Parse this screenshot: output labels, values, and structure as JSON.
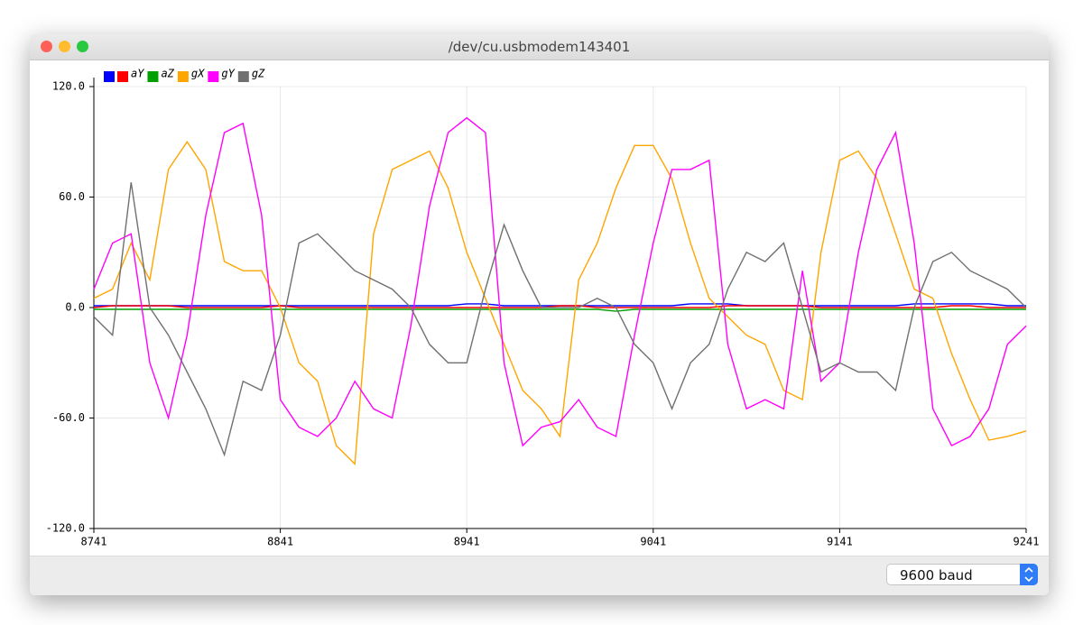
{
  "window_title": "/dev/cu.usbmodem143401",
  "baud_selector": "9600 baud",
  "chart_data": {
    "type": "line",
    "x": [
      8741,
      8751,
      8761,
      8771,
      8781,
      8791,
      8801,
      8811,
      8821,
      8831,
      8841,
      8851,
      8861,
      8871,
      8881,
      8891,
      8901,
      8911,
      8921,
      8931,
      8941,
      8951,
      8961,
      8971,
      8981,
      8991,
      9001,
      9011,
      9021,
      9031,
      9041,
      9051,
      9061,
      9071,
      9081,
      9091,
      9101,
      9111,
      9121,
      9131,
      9141,
      9151,
      9161,
      9171,
      9181,
      9191,
      9201,
      9211,
      9221,
      9231,
      9241
    ],
    "xlim": [
      8741,
      9241
    ],
    "xticks": [
      8741,
      8841,
      8941,
      9041,
      9141,
      9241
    ],
    "ylim": [
      -120,
      120
    ],
    "yticks": [
      {
        "value": -120,
        "label": "-120.0"
      },
      {
        "value": -60,
        "label": "-60.0"
      },
      {
        "value": 0,
        "label": "0.0"
      },
      {
        "value": 60,
        "label": "60.0"
      },
      {
        "value": 120,
        "label": "120.0"
      }
    ],
    "grid": true,
    "series": [
      {
        "name": null,
        "color": "#0000ff",
        "values": [
          1,
          1,
          1,
          1,
          1,
          1,
          1,
          1,
          1,
          1,
          1,
          1,
          1,
          1,
          1,
          1,
          1,
          1,
          1,
          1,
          2,
          2,
          1,
          1,
          1,
          1,
          1,
          1,
          1,
          1,
          1,
          1,
          2,
          2,
          2,
          1,
          1,
          1,
          1,
          1,
          1,
          1,
          1,
          1,
          2,
          2,
          2,
          2,
          2,
          1,
          1
        ]
      },
      {
        "name": "aY",
        "color": "#ff0000",
        "values": [
          0,
          1,
          1,
          1,
          1,
          0,
          0,
          0,
          0,
          0,
          1,
          0,
          0,
          0,
          0,
          0,
          0,
          0,
          0,
          0,
          0,
          0,
          0,
          0,
          0,
          1,
          1,
          0,
          0,
          0,
          0,
          0,
          0,
          0,
          1,
          1,
          1,
          1,
          1,
          0,
          0,
          0,
          0,
          0,
          0,
          0,
          1,
          1,
          0,
          0,
          0
        ]
      },
      {
        "name": "aZ",
        "color": "#00a000",
        "values": [
          -1,
          -1,
          -1,
          -1,
          -1,
          -1,
          -1,
          -1,
          -1,
          -1,
          -1,
          -1,
          -1,
          -1,
          -1,
          -1,
          -1,
          -1,
          -1,
          -1,
          -1,
          -1,
          -1,
          -1,
          -1,
          -1,
          -1,
          -1,
          -2,
          -1,
          -1,
          -1,
          -1,
          -1,
          -1,
          -1,
          -1,
          -1,
          -1,
          -1,
          -1,
          -1,
          -1,
          -1,
          -1,
          -1,
          -1,
          -1,
          -1,
          -1,
          -1
        ]
      },
      {
        "name": "gX",
        "color": "#ffa500",
        "values": [
          5,
          10,
          35,
          15,
          75,
          90,
          75,
          25,
          20,
          20,
          0,
          -30,
          -40,
          -75,
          -85,
          40,
          75,
          80,
          85,
          65,
          30,
          5,
          -20,
          -45,
          -55,
          -70,
          15,
          35,
          65,
          88,
          88,
          70,
          35,
          5,
          -5,
          -15,
          -20,
          -45,
          -50,
          30,
          80,
          85,
          70,
          40,
          10,
          5,
          -25,
          -50,
          -72,
          -70,
          -67
        ]
      },
      {
        "name": "gY",
        "color": "#ff00ff",
        "values": [
          10,
          35,
          40,
          -30,
          -60,
          -15,
          50,
          95,
          100,
          50,
          -50,
          -65,
          -70,
          -60,
          -40,
          -55,
          -60,
          -10,
          55,
          95,
          103,
          95,
          -30,
          -75,
          -65,
          -62,
          -50,
          -65,
          -70,
          -15,
          35,
          75,
          75,
          80,
          -20,
          -55,
          -50,
          -55,
          20,
          -40,
          -30,
          30,
          75,
          95,
          35,
          -55,
          -75,
          -70,
          -55,
          -20,
          -10
        ]
      },
      {
        "name": "gZ",
        "color": "#707070",
        "values": [
          -5,
          -15,
          68,
          0,
          -15,
          -35,
          -55,
          -80,
          -40,
          -45,
          -15,
          35,
          40,
          30,
          20,
          15,
          10,
          0,
          -20,
          -30,
          -30,
          10,
          45,
          20,
          0,
          0,
          0,
          5,
          0,
          -20,
          -30,
          -55,
          -30,
          -20,
          10,
          30,
          25,
          35,
          0,
          -35,
          -30,
          -35,
          -35,
          -45,
          0,
          25,
          30,
          20,
          15,
          10,
          0
        ]
      }
    ]
  }
}
